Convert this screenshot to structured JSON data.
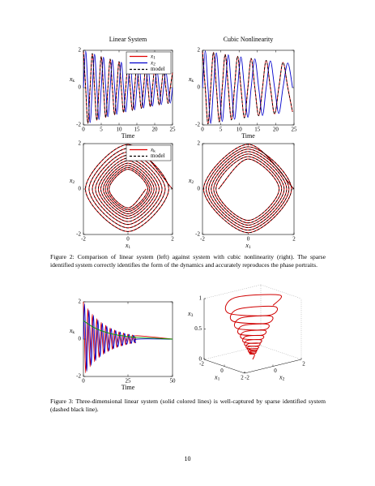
{
  "chart_data": [
    {
      "type": "line",
      "title": "Linear System",
      "xlabel": "Time",
      "ylabel": "xk",
      "x": [
        0,
        0.625,
        1.25,
        1.875,
        2.5,
        3.125,
        3.75,
        4.375,
        5,
        5.625,
        6.25,
        6.875,
        7.5,
        8.125,
        8.75,
        9.375,
        10,
        10.625,
        11.25,
        11.875,
        12.5,
        13.125,
        13.75,
        14.375,
        15,
        15.625,
        16.25,
        16.875,
        17.5,
        18.125,
        18.75,
        19.375,
        20,
        20.625,
        21.25,
        21.875,
        22.5,
        23.125,
        23.75,
        24.375,
        25
      ],
      "xlim": [
        0,
        25
      ],
      "xticks": [
        0,
        5,
        10,
        15,
        20,
        25
      ],
      "ylim": [
        -2,
        2
      ],
      "yticks": [
        -2,
        0,
        2
      ],
      "legend": "upper right",
      "series": [
        {
          "name": "x1",
          "color": "#e00000",
          "values": [
            2,
            0,
            -1.91,
            0,
            1.83,
            0,
            -1.75,
            0,
            1.67,
            0,
            -1.6,
            0,
            1.53,
            0,
            -1.46,
            0,
            1.4,
            0,
            -1.33,
            0,
            1.28,
            0,
            -1.22,
            0,
            1.17,
            0,
            -1.11,
            0,
            1.06,
            0,
            -1.02,
            0,
            0.97,
            0,
            -0.93,
            0,
            0.89,
            0,
            -0.85,
            0,
            0.81
          ]
        },
        {
          "name": "x2",
          "color": "#0000cc",
          "values": [
            0,
            1.96,
            0,
            -1.87,
            0,
            1.79,
            0,
            -1.71,
            0,
            1.63,
            0,
            -1.56,
            0,
            1.49,
            0,
            -1.43,
            0,
            1.36,
            0,
            -1.3,
            0,
            1.25,
            0,
            -1.19,
            0,
            1.14,
            0,
            -1.09,
            0,
            1.04,
            0,
            -0.99,
            0,
            0.95,
            0,
            -0.91,
            0,
            0.87,
            0,
            -0.83,
            0
          ]
        },
        {
          "name": "model",
          "color": "#000000",
          "dashed": true,
          "values": [
            2,
            0,
            -1.91,
            0,
            1.83,
            0,
            -1.75,
            0,
            1.67,
            0,
            -1.6,
            0,
            1.53,
            0,
            -1.46,
            0,
            1.4,
            0,
            -1.33,
            0,
            1.28,
            0,
            -1.22,
            0,
            1.17,
            0,
            -1.11,
            0,
            1.06,
            0,
            -1.02,
            0,
            0.97,
            0,
            -0.93,
            0,
            0.89,
            0,
            -0.85,
            0,
            0.81
          ]
        }
      ]
    },
    {
      "type": "line",
      "title": "Cubic Nonlinearity",
      "xlabel": "Time",
      "ylabel": "xk",
      "x": [
        0,
        0.75,
        1.5,
        2.25,
        3,
        3.8,
        4.6,
        5.4,
        6.2,
        7.05,
        7.9,
        8.75,
        9.6,
        10.5,
        11.45,
        12.4,
        13.3,
        14.3,
        15.35,
        16.4,
        17.4,
        18.55,
        19.7,
        20.85,
        22,
        23.3,
        24.6
      ],
      "xlim": [
        0,
        25
      ],
      "xticks": [
        0,
        5,
        10,
        15,
        20,
        25
      ],
      "ylim": [
        -2,
        2
      ],
      "yticks": [
        -2,
        0,
        2
      ],
      "series": [
        {
          "color": "#e00000",
          "values": [
            2,
            0,
            -1.95,
            0,
            1.89,
            0,
            -1.84,
            0,
            1.78,
            0,
            -1.73,
            0,
            1.68,
            0,
            -1.62,
            0,
            1.57,
            0,
            -1.51,
            0,
            1.46,
            0,
            -1.41,
            0,
            1.35,
            0,
            -1.3
          ]
        },
        {
          "color": "#0000cc",
          "values": [
            0,
            1.97,
            0,
            -1.92,
            0,
            1.86,
            0,
            -1.81,
            0,
            1.76,
            0,
            -1.7,
            0,
            1.65,
            0,
            -1.59,
            0,
            1.54,
            0,
            -1.49,
            0,
            1.43,
            0,
            -1.38,
            0,
            1.32,
            0
          ]
        },
        {
          "color": "#000000",
          "dashed": true,
          "values": [
            2,
            0,
            -1.95,
            0,
            1.89,
            0,
            -1.84,
            0,
            1.78,
            0,
            -1.73,
            0,
            1.68,
            0,
            -1.62,
            0,
            1.57,
            0,
            -1.51,
            0,
            1.46,
            0,
            -1.41,
            0,
            1.35,
            0,
            -1.3
          ]
        }
      ]
    },
    {
      "type": "phase",
      "xlabel": "x1",
      "ylabel": "x2",
      "xlim": [
        -2,
        2
      ],
      "xticks": [
        -2,
        0,
        2
      ],
      "ylim": [
        -2,
        2
      ],
      "yticks": [
        -2,
        0,
        2
      ],
      "legend": "upper right",
      "series": [
        {
          "name": "xk",
          "color": "#e00000"
        },
        {
          "name": "model",
          "color": "#000000",
          "dashed": true
        }
      ]
    },
    {
      "type": "phase",
      "xlabel": "x1",
      "ylabel": "x2",
      "xlim": [
        -2,
        2
      ],
      "xticks": [
        -2,
        0,
        2
      ],
      "ylim": [
        -2,
        2
      ],
      "yticks": [
        -2,
        0,
        2
      ]
    },
    {
      "type": "line",
      "xlabel": "Time",
      "ylabel": "xk",
      "x": [
        0,
        0.625,
        1.25,
        1.875,
        2.5,
        3.125,
        3.75,
        4.375,
        5,
        5.625,
        6.25,
        6.875,
        7.5,
        8.125,
        8.75,
        9.375,
        10,
        10.625,
        11.25,
        11.875,
        12.5,
        13.125,
        13.75,
        14.375,
        15,
        15.625,
        16.25,
        16.875,
        17.5,
        18.125,
        18.75,
        19.375,
        20,
        20.625,
        21.25,
        21.875,
        22.5,
        23.125,
        23.75,
        24.375,
        25,
        25.625,
        26.25,
        26.875,
        27.5,
        28.125,
        28.75,
        29.375,
        30,
        50
      ],
      "xlim": [
        0,
        50
      ],
      "xticks": [
        0,
        25,
        50
      ],
      "ylim": [
        -2,
        2
      ],
      "yticks": [
        -2,
        0,
        2
      ],
      "series": [
        {
          "color": "#e00000",
          "values": [
            2,
            0,
            -1.81,
            0,
            1.64,
            0,
            -1.48,
            0,
            1.34,
            0,
            -1.21,
            0,
            1.1,
            0,
            -0.99,
            0,
            0.9,
            0,
            -0.81,
            0,
            0.74,
            0,
            -0.67,
            0,
            0.6,
            0,
            -0.55,
            0,
            0.49,
            0,
            -0.45,
            0,
            0.4,
            0,
            -0.37,
            0,
            0.33,
            0,
            -0.3,
            0,
            0.27,
            0,
            -0.24,
            0,
            0.22,
            0,
            -0.2,
            0,
            0.18,
            0
          ]
        },
        {
          "color": "#0000cc",
          "values": [
            0,
            1.9,
            0,
            -1.72,
            0,
            1.56,
            0,
            -1.41,
            0,
            1.28,
            0,
            -1.15,
            0,
            1.04,
            0,
            -0.94,
            0,
            0.85,
            0,
            -0.77,
            0,
            0.7,
            0,
            -0.63,
            0,
            0.57,
            0,
            -0.52,
            0,
            0.47,
            0,
            -0.42,
            0,
            0.38,
            0,
            -0.35,
            0,
            0.31,
            0,
            -0.28,
            0,
            0.26,
            0,
            -0.23,
            0,
            0.21,
            0,
            -0.19,
            0,
            0
          ]
        },
        {
          "color": "#00a000",
          "values": [
            1,
            0.95,
            0.91,
            0.86,
            0.82,
            0.78,
            0.74,
            0.71,
            0.67,
            0.64,
            0.61,
            0.58,
            0.55,
            0.52,
            0.5,
            0.47,
            0.45,
            0.43,
            0.41,
            0.39,
            0.37,
            0.35,
            0.34,
            0.32,
            0.3,
            0.29,
            0.28,
            0.26,
            0.25,
            0.24,
            0.23,
            0.21,
            0.2,
            0.19,
            0.19,
            0.18,
            0.17,
            0.16,
            0.15,
            0.14,
            0.14,
            0.13,
            0.12,
            0.12,
            0.11,
            0.11,
            0.1,
            0.1,
            0.09,
            0
          ]
        }
      ]
    },
    {
      "type": "line3d",
      "xlabel": "x1",
      "ylabel": "x2",
      "zlabel": "x3",
      "xlim": [
        -2,
        2
      ],
      "xticks": [
        -2,
        0,
        2
      ],
      "ylim": [
        -2,
        2
      ],
      "yticks": [
        -2,
        0,
        2
      ],
      "zlim": [
        0,
        1
      ],
      "zticks": [
        0,
        0.5,
        1
      ]
    }
  ],
  "captions": [
    "Figure 2: Comparison of linear system (left) against system with cubic nonlinearity (right). The sparse identified system correctly identifies the form of the dynamics and accurately reproduces the phase portraits.",
    "Figure 3: Three-dimensional linear system (solid colored lines) is well-captured by sparse identified system (dashed black line)."
  ],
  "page_number": "10"
}
